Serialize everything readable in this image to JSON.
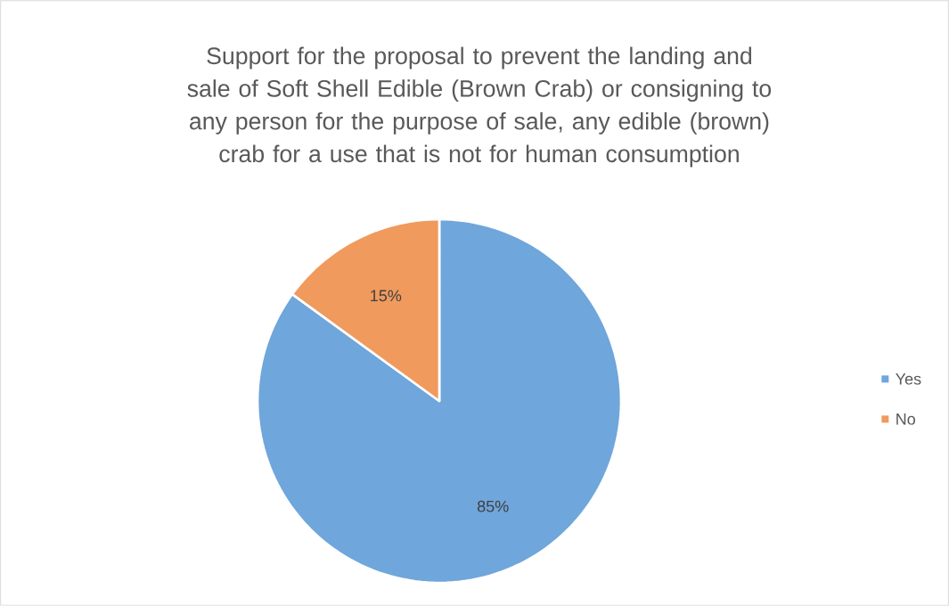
{
  "chart_data": {
    "type": "pie",
    "title": "Support for the proposal to prevent the landing and sale of Soft Shell Edible (Brown Crab) or consigning to any person for the purpose of sale, any edible (brown) crab for a use that is not for human consumption",
    "categories": [
      "Yes",
      "No"
    ],
    "values": [
      85,
      15
    ],
    "colors": [
      "#6fa6db",
      "#f09a5e"
    ],
    "value_labels": [
      "85%",
      "15%"
    ],
    "legend": "right"
  }
}
